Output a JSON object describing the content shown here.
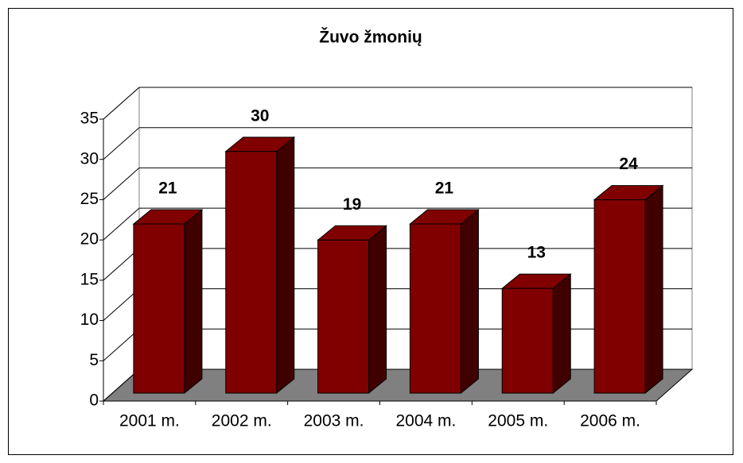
{
  "chart_data": {
    "type": "bar3d",
    "title": "Žuvo žmonių",
    "categories": [
      "2001 m.",
      "2002 m.",
      "2003 m.",
      "2004 m.",
      "2005 m.",
      "2006 m."
    ],
    "values": [
      21,
      30,
      19,
      21,
      13,
      24
    ],
    "color": "#800000",
    "ylim": [
      0,
      35
    ],
    "yticks": [
      0,
      5,
      10,
      15,
      20,
      25,
      30,
      35
    ],
    "grid": true
  }
}
